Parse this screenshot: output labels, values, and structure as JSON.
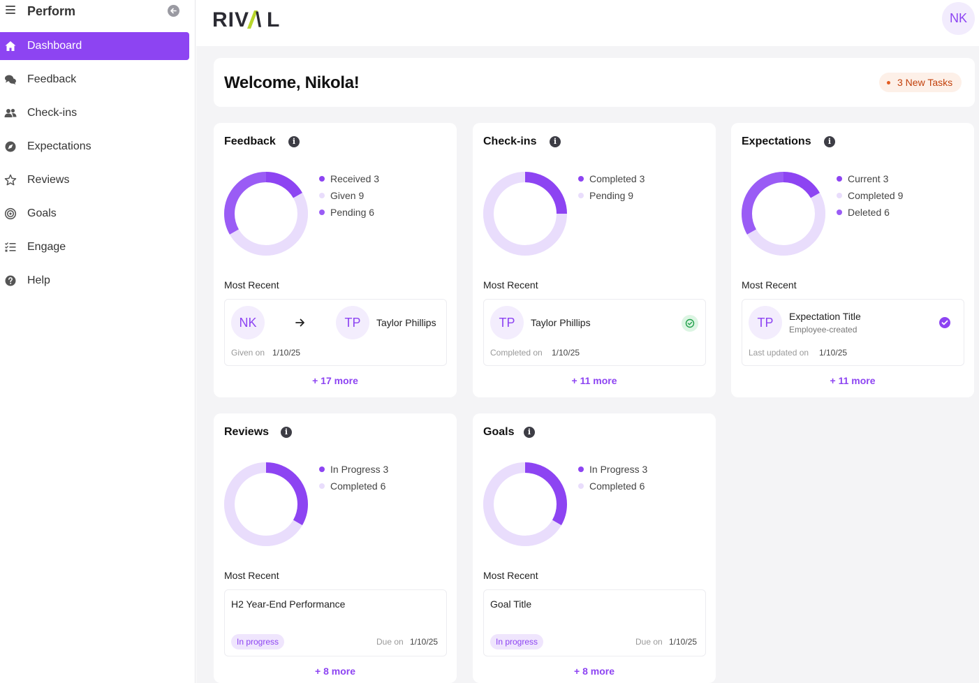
{
  "sidebar": {
    "title": "Perform",
    "items": [
      {
        "label": "Dashboard",
        "icon": "home-icon",
        "active": true
      },
      {
        "label": "Feedback",
        "icon": "chat-bubbles-icon"
      },
      {
        "label": "Check-ins",
        "icon": "users-icon"
      },
      {
        "label": "Expectations",
        "icon": "compass-icon"
      },
      {
        "label": "Reviews",
        "icon": "star-icon"
      },
      {
        "label": "Goals",
        "icon": "target-icon"
      },
      {
        "label": "Engage",
        "icon": "checklist-icon"
      },
      {
        "label": "Help",
        "icon": "question-icon"
      }
    ]
  },
  "header": {
    "logo_text": "RIVAL",
    "user_initials": "NK"
  },
  "welcome": {
    "greeting": "Welcome, Nikola!",
    "tasks_badge": "3 New Tasks"
  },
  "colors": {
    "accent": "#8d44f2",
    "accent_mid": "#b98af6",
    "accent_light": "#e9ddfc",
    "badge_text": "#c2410c"
  },
  "cards": {
    "feedback": {
      "title": "Feedback",
      "legend": [
        {
          "label": "Received 3",
          "value": 3,
          "color": "#8d44f2"
        },
        {
          "label": "Given 9",
          "value": 9,
          "color": "#e9ddfc"
        },
        {
          "label": "Pending 6",
          "value": 6,
          "color": "#9a5cf5"
        }
      ],
      "most_recent_label": "Most Recent",
      "recent": {
        "from_initials": "NK",
        "to_initials": "TP",
        "to_name": "Taylor Phillips",
        "meta_label": "Given on",
        "meta_value": "1/10/25"
      },
      "more": "+ 17 more"
    },
    "checkins": {
      "title": "Check-ins",
      "legend": [
        {
          "label": "Completed 3",
          "value": 3,
          "color": "#8d44f2"
        },
        {
          "label": "Pending 9",
          "value": 9,
          "color": "#e9ddfc"
        }
      ],
      "most_recent_label": "Most Recent",
      "recent": {
        "initials": "TP",
        "name": "Taylor Phillips",
        "meta_label": "Completed on",
        "meta_value": "1/10/25"
      },
      "more": "+ 11 more"
    },
    "expectations": {
      "title": "Expectations",
      "legend": [
        {
          "label": "Current 3",
          "value": 3,
          "color": "#8d44f2"
        },
        {
          "label": "Completed 9",
          "value": 9,
          "color": "#e9ddfc"
        },
        {
          "label": "Deleted 6",
          "value": 6,
          "color": "#9a5cf5"
        }
      ],
      "most_recent_label": "Most Recent",
      "recent": {
        "initials": "TP",
        "name": "Expectation Title",
        "subtitle": "Employee-created",
        "meta_label": "Last updated on",
        "meta_value": "1/10/25"
      },
      "more": "+ 11 more"
    },
    "reviews": {
      "title": "Reviews",
      "legend": [
        {
          "label": "In Progress 3",
          "value": 3,
          "color": "#8d44f2"
        },
        {
          "label": "Completed 6",
          "value": 6,
          "color": "#e9ddfc"
        }
      ],
      "most_recent_label": "Most Recent",
      "recent": {
        "title": "H2 Year-End Performance",
        "status": "In progress",
        "meta_label": "Due on",
        "meta_value": "1/10/25"
      },
      "more": "+ 8 more"
    },
    "goals": {
      "title": "Goals",
      "legend": [
        {
          "label": "In Progress 3",
          "value": 3,
          "color": "#8d44f2"
        },
        {
          "label": "Completed 6",
          "value": 6,
          "color": "#e9ddfc"
        }
      ],
      "most_recent_label": "Most Recent",
      "recent": {
        "title": "Goal Title",
        "status": "In progress",
        "meta_label": "Due on",
        "meta_value": "1/10/25"
      },
      "more": "+ 8 more"
    }
  }
}
